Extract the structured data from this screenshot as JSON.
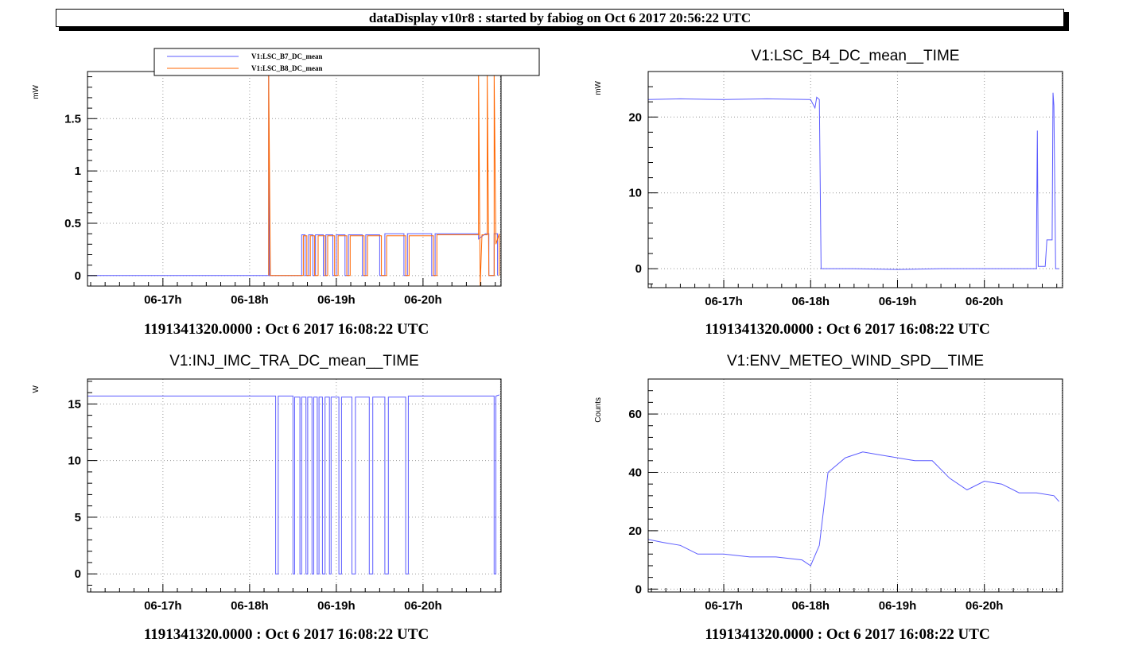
{
  "header": {
    "title": "dataDisplay v10r8 : started by fabiog on Oct  6 2017 20:56:22 UTC"
  },
  "colors": {
    "blue": "#5b5bff",
    "orange": "#ff6600",
    "grid": "#999999",
    "axis": "#000000"
  },
  "chart_data": [
    {
      "type": "line",
      "title": "",
      "ylabel": "mW",
      "xlabel": "1191341320.0000 : Oct  6 2017 16:08:22 UTC",
      "x_ticks": [
        "06-17h",
        "06-18h",
        "06-19h",
        "06-20h"
      ],
      "ylim": [
        -0.1,
        1.95
      ],
      "y_ticks": [
        0,
        0.5,
        1,
        1.5
      ],
      "y_tick_labels": [
        "0",
        "0.5",
        "1",
        "1.5"
      ],
      "legend": {
        "placement": "top"
      },
      "series": [
        {
          "name": "V1:LSC_B7_DC_mean",
          "color": "#5b5bff",
          "points": [
            [
              16.13,
              0
            ],
            [
              18.22,
              0
            ],
            [
              18.22,
              1.95
            ],
            [
              18.23,
              0
            ],
            [
              18.6,
              0
            ],
            [
              18.6,
              0.39
            ],
            [
              18.64,
              0.39
            ],
            [
              18.64,
              0
            ],
            [
              18.68,
              0
            ],
            [
              18.68,
              0.39
            ],
            [
              18.73,
              0.39
            ],
            [
              18.73,
              0
            ],
            [
              18.76,
              0
            ],
            [
              18.76,
              0.39
            ],
            [
              18.85,
              0.39
            ],
            [
              18.85,
              0
            ],
            [
              18.88,
              0
            ],
            [
              18.88,
              0.39
            ],
            [
              18.96,
              0.39
            ],
            [
              18.96,
              0
            ],
            [
              19.0,
              0
            ],
            [
              19.0,
              0.39
            ],
            [
              19.1,
              0.39
            ],
            [
              19.1,
              0
            ],
            [
              19.14,
              0
            ],
            [
              19.14,
              0.39
            ],
            [
              19.3,
              0.39
            ],
            [
              19.3,
              0
            ],
            [
              19.34,
              0
            ],
            [
              19.34,
              0.39
            ],
            [
              19.5,
              0.39
            ],
            [
              19.5,
              0
            ],
            [
              19.56,
              0
            ],
            [
              19.56,
              0.4
            ],
            [
              19.78,
              0.4
            ],
            [
              19.78,
              0
            ],
            [
              19.82,
              0
            ],
            [
              19.82,
              0.4
            ],
            [
              20.1,
              0.4
            ],
            [
              20.1,
              0
            ],
            [
              20.14,
              0
            ],
            [
              20.14,
              0.4
            ],
            [
              20.64,
              0.4
            ],
            [
              20.64,
              0.35
            ],
            [
              20.72,
              0.4
            ],
            [
              20.76,
              0.4
            ],
            [
              20.76,
              0
            ],
            [
              20.82,
              0
            ],
            [
              20.82,
              0.4
            ],
            [
              20.86,
              0.4
            ],
            [
              20.86,
              0
            ]
          ]
        },
        {
          "name": "V1:LSC_B8_DC_mean",
          "color": "#ff6600",
          "points": [
            [
              18.22,
              0
            ],
            [
              18.22,
              1.95
            ],
            [
              18.24,
              0
            ],
            [
              18.62,
              0
            ],
            [
              18.62,
              0.38
            ],
            [
              18.66,
              0.38
            ],
            [
              18.66,
              0
            ],
            [
              18.7,
              0
            ],
            [
              18.7,
              0.38
            ],
            [
              18.75,
              0.38
            ],
            [
              18.75,
              0
            ],
            [
              18.79,
              0
            ],
            [
              18.79,
              0.38
            ],
            [
              18.87,
              0.38
            ],
            [
              18.87,
              0
            ],
            [
              18.9,
              0
            ],
            [
              18.9,
              0.38
            ],
            [
              18.98,
              0.38
            ],
            [
              18.98,
              0
            ],
            [
              19.02,
              0
            ],
            [
              19.02,
              0.38
            ],
            [
              19.12,
              0.38
            ],
            [
              19.12,
              0
            ],
            [
              19.16,
              0
            ],
            [
              19.16,
              0.38
            ],
            [
              19.32,
              0.38
            ],
            [
              19.32,
              0
            ],
            [
              19.36,
              0
            ],
            [
              19.36,
              0.38
            ],
            [
              19.52,
              0.38
            ],
            [
              19.52,
              0
            ],
            [
              19.58,
              0
            ],
            [
              19.58,
              0.38
            ],
            [
              19.8,
              0.38
            ],
            [
              19.8,
              0
            ],
            [
              19.84,
              0
            ],
            [
              19.84,
              0.38
            ],
            [
              20.12,
              0.38
            ],
            [
              20.12,
              0
            ],
            [
              20.16,
              0
            ],
            [
              20.16,
              0.39
            ],
            [
              20.64,
              0.39
            ],
            [
              20.64,
              1.95
            ],
            [
              20.66,
              -0.1
            ],
            [
              20.68,
              0.39
            ],
            [
              20.74,
              0.39
            ],
            [
              20.74,
              1.95
            ],
            [
              20.76,
              0
            ],
            [
              20.82,
              0
            ],
            [
              20.82,
              1.95
            ],
            [
              20.84,
              0.3
            ],
            [
              20.88,
              0.4
            ],
            [
              20.88,
              0
            ]
          ]
        }
      ]
    },
    {
      "type": "line",
      "title": "V1:LSC_B4_DC_mean__TIME",
      "ylabel": "mW",
      "xlabel": "1191341320.0000 : Oct  6 2017 16:08:22 UTC",
      "x_ticks": [
        "06-17h",
        "06-18h",
        "06-19h",
        "06-20h"
      ],
      "ylim": [
        -2.5,
        26
      ],
      "y_ticks": [
        0,
        10,
        20
      ],
      "y_tick_labels": [
        "0",
        "10",
        "20"
      ],
      "series": [
        {
          "color": "#5b5bff",
          "points": [
            [
              16.13,
              22.3
            ],
            [
              16.5,
              22.4
            ],
            [
              17.0,
              22.3
            ],
            [
              17.5,
              22.4
            ],
            [
              18.0,
              22.3
            ],
            [
              18.05,
              21.2
            ],
            [
              18.07,
              22.6
            ],
            [
              18.1,
              22.3
            ],
            [
              18.12,
              0
            ],
            [
              18.5,
              0
            ],
            [
              19.0,
              -0.1
            ],
            [
              19.5,
              0
            ],
            [
              20.0,
              0
            ],
            [
              20.6,
              0
            ],
            [
              20.6,
              3.5
            ],
            [
              20.61,
              18.2
            ],
            [
              20.62,
              0.3
            ],
            [
              20.7,
              0.3
            ],
            [
              20.72,
              3.8
            ],
            [
              20.78,
              3.8
            ],
            [
              20.79,
              23.2
            ],
            [
              20.8,
              21.5
            ],
            [
              20.82,
              0
            ],
            [
              20.86,
              0
            ]
          ]
        }
      ]
    },
    {
      "type": "line",
      "title": "V1:INJ_IMC_TRA_DC_mean__TIME",
      "ylabel": "W",
      "xlabel": "1191341320.0000 : Oct  6 2017 16:08:22 UTC",
      "x_ticks": [
        "06-17h",
        "06-18h",
        "06-19h",
        "06-20h"
      ],
      "ylim": [
        -1.6,
        17.2
      ],
      "y_ticks": [
        0,
        5,
        10,
        15
      ],
      "y_tick_labels": [
        "0",
        "5",
        "10",
        "15"
      ],
      "series": [
        {
          "color": "#5b5bff",
          "points": [
            [
              16.13,
              15.7
            ],
            [
              18.3,
              15.7
            ],
            [
              18.3,
              0
            ],
            [
              18.33,
              0
            ],
            [
              18.33,
              15.7
            ],
            [
              18.5,
              15.7
            ],
            [
              18.5,
              0
            ],
            [
              18.52,
              0
            ],
            [
              18.52,
              15.6
            ],
            [
              18.58,
              15.6
            ],
            [
              18.58,
              0
            ],
            [
              18.6,
              0
            ],
            [
              18.6,
              15.6
            ],
            [
              18.65,
              15.6
            ],
            [
              18.65,
              0
            ],
            [
              18.67,
              0
            ],
            [
              18.67,
              15.6
            ],
            [
              18.72,
              15.6
            ],
            [
              18.72,
              0
            ],
            [
              18.74,
              0
            ],
            [
              18.74,
              15.6
            ],
            [
              18.78,
              15.6
            ],
            [
              18.78,
              0
            ],
            [
              18.8,
              0
            ],
            [
              18.8,
              15.6
            ],
            [
              18.84,
              15.6
            ],
            [
              18.84,
              0
            ],
            [
              18.87,
              0
            ],
            [
              18.87,
              15.6
            ],
            [
              18.92,
              15.6
            ],
            [
              18.92,
              0
            ],
            [
              18.94,
              0
            ],
            [
              18.94,
              15.6
            ],
            [
              19.03,
              15.6
            ],
            [
              19.03,
              0
            ],
            [
              19.06,
              0
            ],
            [
              19.06,
              15.6
            ],
            [
              19.18,
              15.6
            ],
            [
              19.18,
              0
            ],
            [
              19.22,
              0
            ],
            [
              19.22,
              15.6
            ],
            [
              19.38,
              15.6
            ],
            [
              19.38,
              0
            ],
            [
              19.42,
              0
            ],
            [
              19.42,
              15.6
            ],
            [
              19.56,
              15.6
            ],
            [
              19.56,
              0
            ],
            [
              19.6,
              0
            ],
            [
              19.6,
              15.6
            ],
            [
              19.8,
              15.6
            ],
            [
              19.8,
              0
            ],
            [
              19.83,
              0
            ],
            [
              19.83,
              15.7
            ],
            [
              20.82,
              15.7
            ],
            [
              20.82,
              0
            ],
            [
              20.84,
              0
            ],
            [
              20.84,
              15.7
            ],
            [
              20.88,
              15.8
            ]
          ]
        }
      ]
    },
    {
      "type": "line",
      "title": "V1:ENV_METEO_WIND_SPD__TIME",
      "ylabel": "Counts",
      "xlabel": "1191341320.0000 : Oct  6 2017 16:08:22 UTC",
      "x_ticks": [
        "06-17h",
        "06-18h",
        "06-19h",
        "06-20h"
      ],
      "ylim": [
        -1,
        72
      ],
      "y_ticks": [
        0,
        20,
        40,
        60
      ],
      "y_tick_labels": [
        "0",
        "20",
        "40",
        "60"
      ],
      "series": [
        {
          "color": "#5b5bff",
          "points": [
            [
              16.13,
              17
            ],
            [
              16.3,
              16
            ],
            [
              16.5,
              15
            ],
            [
              16.7,
              12
            ],
            [
              17.0,
              12
            ],
            [
              17.3,
              11
            ],
            [
              17.6,
              11
            ],
            [
              17.9,
              10
            ],
            [
              18.0,
              8
            ],
            [
              18.1,
              15
            ],
            [
              18.2,
              40
            ],
            [
              18.4,
              45
            ],
            [
              18.6,
              47
            ],
            [
              18.8,
              46
            ],
            [
              19.0,
              45
            ],
            [
              19.2,
              44
            ],
            [
              19.4,
              44
            ],
            [
              19.6,
              38
            ],
            [
              19.8,
              34
            ],
            [
              20.0,
              37
            ],
            [
              20.2,
              36
            ],
            [
              20.4,
              33
            ],
            [
              20.6,
              33
            ],
            [
              20.8,
              32
            ],
            [
              20.86,
              30
            ]
          ]
        }
      ]
    }
  ]
}
